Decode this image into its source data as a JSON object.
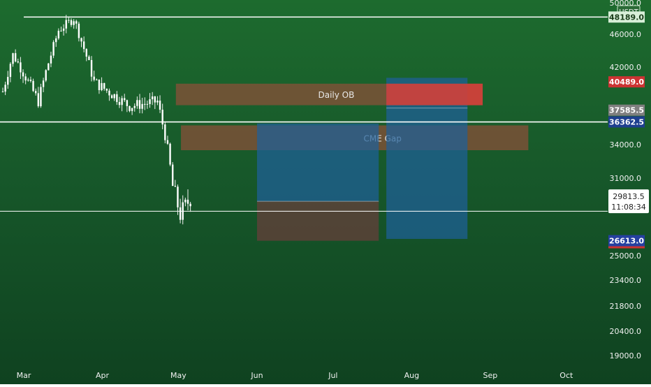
{
  "chart_data": {
    "type": "candlestick",
    "currency_label": "USDT",
    "y_ticks": [
      "50000.0",
      "46000.0",
      "42000.0",
      "34000.0",
      "31000.0",
      "25000.0",
      "23400.0",
      "21800.0",
      "20400.0",
      "19000.0"
    ],
    "x_ticks": [
      "Mar",
      "Apr",
      "May",
      "Jun",
      "Jul",
      "Aug",
      "Sep",
      "Oct"
    ],
    "price_tags": [
      {
        "value": 48189.0,
        "text": "48189.0",
        "bg": "#d8efd8",
        "fg": "#1a3d1a"
      },
      {
        "value": 40489.0,
        "text": "40489.0",
        "bg": "#cc3333",
        "fg": "#ffffff"
      },
      {
        "value": 37585.5,
        "text": "37585.5",
        "bg": "#7f7f7f",
        "fg": "#ffffff"
      },
      {
        "value": 36362.5,
        "text": "36362.5",
        "bg": "#1e3f8f",
        "fg": "#ffffff"
      },
      {
        "value": 26613.0,
        "text": "26613.0",
        "bg": "#2540a0",
        "fg": "#ffffff"
      }
    ],
    "last_price": {
      "value": 29813.5,
      "text": "29813.5",
      "countdown": "11:08:34"
    },
    "horizontal_lines": [
      48189.0,
      36362.5,
      29000.0
    ],
    "zones": [
      {
        "label": "Daily OB",
        "from": 40300,
        "to": 38100,
        "start": "2022-04-30",
        "end": "2022-08-29"
      },
      {
        "label": "CME Gap",
        "from": 36000,
        "to": 33500,
        "start": "2022-05-02",
        "end": "2022-09-16"
      }
    ],
    "positions": [
      {
        "start": "2022-06-01",
        "end": "2022-07-19",
        "entry": 29600,
        "target": 36200,
        "stop": 26600
      },
      {
        "start": "2022-07-22",
        "end": "2022-08-23",
        "entry": 37800,
        "target": 40900,
        "stop": 26800
      }
    ]
  }
}
